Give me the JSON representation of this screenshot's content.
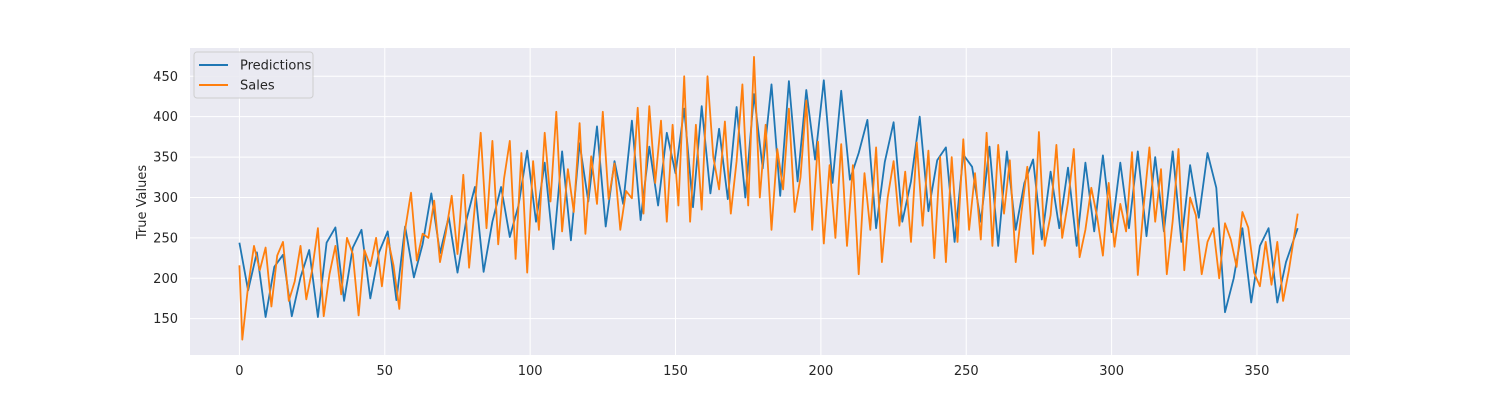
{
  "chart_data": {
    "type": "line",
    "title": "",
    "xlabel": "",
    "ylabel": "True Values",
    "xlim": [
      -17,
      382
    ],
    "ylim": [
      105,
      485
    ],
    "xticks": [
      0,
      50,
      100,
      150,
      200,
      250,
      300,
      350
    ],
    "yticks": [
      150,
      200,
      250,
      300,
      350,
      400,
      450
    ],
    "grid": true,
    "legend_position": "top-left",
    "series": [
      {
        "name": "Predictions",
        "color": "#1f77b4",
        "x": [
          0,
          3,
          6,
          9,
          12,
          15,
          18,
          21,
          24,
          27,
          30,
          33,
          36,
          39,
          42,
          45,
          48,
          51,
          54,
          57,
          60,
          63,
          66,
          69,
          72,
          75,
          78,
          81,
          84,
          87,
          90,
          93,
          96,
          99,
          102,
          105,
          108,
          111,
          114,
          117,
          120,
          123,
          126,
          129,
          132,
          135,
          138,
          141,
          144,
          147,
          150,
          153,
          156,
          159,
          162,
          165,
          168,
          171,
          174,
          177,
          180,
          183,
          186,
          189,
          192,
          195,
          198,
          201,
          204,
          207,
          210,
          213,
          216,
          219,
          222,
          225,
          228,
          231,
          234,
          237,
          240,
          243,
          246,
          249,
          252,
          255,
          258,
          261,
          264,
          267,
          270,
          273,
          276,
          279,
          282,
          285,
          288,
          291,
          294,
          297,
          300,
          303,
          306,
          309,
          312,
          315,
          318,
          321,
          324,
          327,
          330,
          333,
          336,
          339,
          342,
          345,
          348,
          351,
          354,
          357,
          360,
          364
        ],
        "y": [
          244,
          185,
          232,
          152,
          214,
          229,
          153,
          201,
          235,
          152,
          244,
          263,
          172,
          238,
          260,
          175,
          232,
          258,
          173,
          264,
          201,
          242,
          305,
          231,
          276,
          207,
          271,
          313,
          208,
          270,
          313,
          251,
          290,
          358,
          270,
          343,
          236,
          357,
          247,
          367,
          295,
          388,
          264,
          345,
          292,
          395,
          272,
          363,
          290,
          380,
          330,
          410,
          288,
          413,
          305,
          385,
          298,
          412,
          300,
          428,
          336,
          440,
          302,
          444,
          320,
          433,
          347,
          445,
          318,
          432,
          322,
          355,
          396,
          262,
          344,
          393,
          270,
          320,
          400,
          283,
          346,
          362,
          245,
          353,
          338,
          270,
          363,
          240,
          357,
          260,
          318,
          347,
          248,
          332,
          262,
          337,
          240,
          343,
          258,
          352,
          257,
          343,
          262,
          357,
          252,
          350,
          258,
          357,
          245,
          340,
          275,
          355,
          312,
          158,
          200,
          262,
          170,
          240,
          262,
          170,
          220,
          262
        ]
      },
      {
        "name": "Sales",
        "color": "#ff7f0e",
        "x": [
          0,
          1,
          3,
          5,
          7,
          9,
          11,
          13,
          15,
          17,
          19,
          21,
          23,
          25,
          27,
          29,
          31,
          33,
          35,
          37,
          39,
          41,
          43,
          45,
          47,
          49,
          51,
          53,
          55,
          57,
          59,
          61,
          63,
          65,
          67,
          69,
          71,
          73,
          75,
          77,
          79,
          81,
          83,
          85,
          87,
          89,
          91,
          93,
          95,
          97,
          99,
          101,
          103,
          105,
          107,
          109,
          111,
          113,
          115,
          117,
          119,
          121,
          123,
          125,
          127,
          129,
          131,
          133,
          135,
          137,
          139,
          141,
          143,
          145,
          147,
          149,
          151,
          153,
          155,
          157,
          159,
          161,
          163,
          165,
          167,
          169,
          171,
          173,
          175,
          177,
          179,
          181,
          183,
          185,
          187,
          189,
          191,
          193,
          195,
          197,
          199,
          201,
          203,
          205,
          207,
          209,
          211,
          213,
          215,
          217,
          219,
          221,
          223,
          225,
          227,
          229,
          231,
          233,
          235,
          237,
          239,
          241,
          243,
          245,
          247,
          249,
          251,
          253,
          255,
          257,
          259,
          261,
          263,
          265,
          267,
          269,
          271,
          273,
          275,
          277,
          279,
          281,
          283,
          285,
          287,
          289,
          291,
          293,
          295,
          297,
          299,
          301,
          303,
          305,
          307,
          309,
          311,
          313,
          315,
          317,
          319,
          321,
          323,
          325,
          327,
          329,
          331,
          333,
          335,
          337,
          339,
          341,
          343,
          345,
          347,
          349,
          351,
          353,
          355,
          357,
          359,
          361,
          364
        ],
        "y": [
          216,
          124,
          190,
          240,
          210,
          238,
          165,
          228,
          245,
          172,
          196,
          240,
          174,
          210,
          262,
          153,
          205,
          240,
          180,
          250,
          230,
          154,
          235,
          215,
          250,
          190,
          250,
          216,
          162,
          260,
          306,
          222,
          255,
          250,
          296,
          220,
          256,
          302,
          230,
          328,
          213,
          290,
          380,
          262,
          370,
          242,
          323,
          370,
          224,
          355,
          207,
          345,
          260,
          380,
          295,
          406,
          258,
          335,
          282,
          392,
          255,
          351,
          292,
          406,
          298,
          342,
          260,
          308,
          299,
          411,
          280,
          413,
          318,
          395,
          270,
          390,
          290,
          450,
          270,
          390,
          285,
          450,
          350,
          310,
          394,
          280,
          345,
          440,
          290,
          474,
          300,
          390,
          260,
          360,
          310,
          410,
          282,
          325,
          420,
          260,
          369,
          243,
          340,
          250,
          366,
          240,
          340,
          205,
          330,
          260,
          362,
          220,
          300,
          345,
          265,
          332,
          245,
          368,
          265,
          358,
          225,
          350,
          220,
          350,
          245,
          372,
          260,
          330,
          248,
          380,
          240,
          365,
          280,
          346,
          220,
          282,
          338,
          230,
          381,
          240,
          278,
          365,
          250,
          294,
          360,
          226,
          260,
          312,
          276,
          228,
          318,
          239,
          292,
          258,
          356,
          204,
          288,
          362,
          270,
          335,
          205,
          271,
          360,
          210,
          300,
          278,
          205,
          245,
          262,
          200,
          268,
          248,
          214,
          282,
          263,
          207,
          190,
          245,
          192,
          245,
          172,
          210,
          280
        ]
      }
    ]
  }
}
